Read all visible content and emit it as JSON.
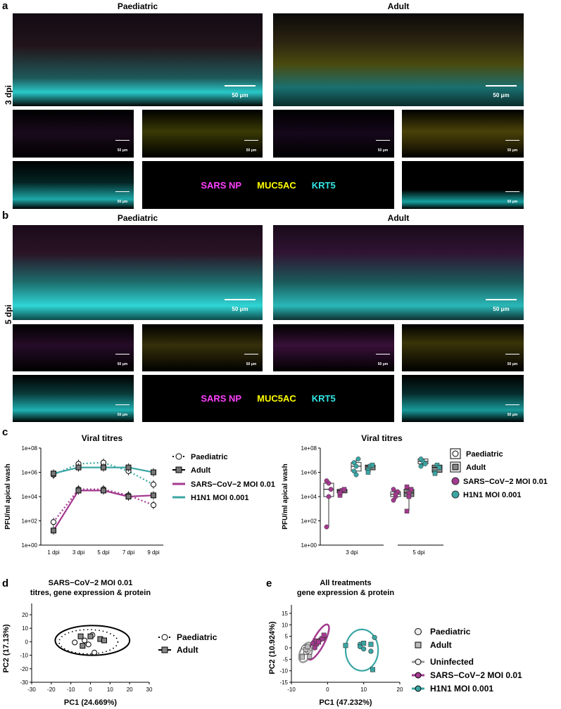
{
  "panel_a": {
    "label": "a",
    "col_left": "Paediatric",
    "col_right": "Adult",
    "row_label": "3 dpi",
    "scale_large": "50 μm",
    "scale_small": "50 μm"
  },
  "panel_b": {
    "label": "b",
    "col_left": "Paediatric",
    "col_right": "Adult",
    "row_label": "5 dpi",
    "scale_large": "50 μm",
    "scale_small": "50 μm"
  },
  "stain_legend": {
    "sars": {
      "label": "SARS NP",
      "color": "#ff40ff"
    },
    "muc": {
      "label": "MUC5AC",
      "color": "#ffff00"
    },
    "krt": {
      "label": "KRT5",
      "color": "#33e6e6"
    }
  },
  "panel_c": {
    "label": "c"
  },
  "panel_d": {
    "label": "d"
  },
  "panel_e": {
    "label": "e"
  },
  "colors": {
    "magenta": "#a43a8f",
    "teal": "#3aa6a3",
    "grey": "#9a9a9a"
  },
  "chart_data": [
    {
      "id": "c_left",
      "type": "line",
      "title": "Viral titres",
      "ylabel": "PFU/ml apical wash",
      "categories": [
        "1 dpi",
        "3 dpi",
        "5 dpi",
        "7 dpi",
        "9 dpi"
      ],
      "y_ticks": [
        "1e+00",
        "1e+02",
        "1e+04",
        "1e+06",
        "1e+08"
      ],
      "y_scale": "log10",
      "ylim": [
        0,
        8
      ],
      "series": [
        {
          "name": "SARS-CoV-2 MOI 0.01 Paediatric",
          "log10_values": [
            1.9,
            4.6,
            4.6,
            4.1,
            3.3
          ]
        },
        {
          "name": "SARS-CoV-2 MOI 0.01 Adult",
          "log10_values": [
            1.2,
            4.5,
            4.5,
            4.0,
            4.1
          ]
        },
        {
          "name": "H1N1 MOI 0.001 Paediatric",
          "log10_values": [
            5.8,
            6.7,
            6.8,
            6.1,
            5.0
          ]
        },
        {
          "name": "H1N1 MOI 0.001 Adult",
          "log10_values": [
            5.9,
            6.4,
            6.4,
            6.4,
            6.0
          ]
        }
      ],
      "legend": {
        "paediatric": "Paediatric",
        "adult": "Adult",
        "sars": "SARS−CoV−2 MOI 0.01",
        "h1n1": "H1N1 MOI 0.001"
      }
    },
    {
      "id": "c_right",
      "type": "scatter",
      "title": "Viral titres",
      "ylabel": "PFU/ml apical wash",
      "categories": [
        "3 dpi",
        "5 dpi"
      ],
      "y_ticks": [
        "1e+00",
        "1e+02",
        "1e+04",
        "1e+06",
        "1e+08"
      ],
      "y_scale": "log10",
      "groups": [
        {
          "category": "3 dpi",
          "virus": "SARS-CoV-2",
          "age": "Paediatric",
          "log10_values": [
            1.5,
            4.0,
            4.6,
            5.3,
            5.1
          ]
        },
        {
          "category": "3 dpi",
          "virus": "SARS-CoV-2",
          "age": "Adult",
          "log10_values": [
            4.1,
            4.5,
            4.6,
            4.3
          ]
        },
        {
          "category": "3 dpi",
          "virus": "H1N1",
          "age": "Paediatric",
          "log10_values": [
            6.1,
            6.5,
            7.1,
            6.8,
            5.8
          ]
        },
        {
          "category": "3 dpi",
          "virus": "H1N1",
          "age": "Adult",
          "log10_values": [
            6.2,
            6.5,
            6.6,
            6.0
          ]
        },
        {
          "category": "5 dpi",
          "virus": "SARS-CoV-2",
          "age": "Paediatric",
          "log10_values": [
            3.7,
            4.0,
            4.4,
            4.6,
            4.2
          ]
        },
        {
          "category": "5 dpi",
          "virus": "SARS-CoV-2",
          "age": "Adult",
          "log10_values": [
            2.8,
            4.3,
            4.6,
            4.8,
            4.0
          ]
        },
        {
          "category": "5 dpi",
          "virus": "H1N1",
          "age": "Paediatric",
          "log10_values": [
            6.5,
            6.9,
            6.7,
            7.1
          ]
        },
        {
          "category": "5 dpi",
          "virus": "H1N1",
          "age": "Adult",
          "log10_values": [
            6.0,
            6.6,
            6.4,
            5.9
          ]
        }
      ],
      "legend": {
        "paediatric": "Paediatric",
        "adult": "Adult",
        "sars": "SARS−CoV−2 MOI 0.01",
        "h1n1": "H1N1 MOI 0.001"
      }
    },
    {
      "id": "d",
      "type": "scatter",
      "title": "SARS−CoV−2 MOI 0.01",
      "subtitle": "titres, gene expression & protein",
      "xlabel": "PC1 (24.669%)",
      "ylabel": "PC2 (17.13%)",
      "xlim": [
        -30,
        30
      ],
      "ylim": [
        -30,
        20
      ],
      "x_ticks": [
        -30,
        -20,
        -10,
        0,
        10,
        20,
        30
      ],
      "y_ticks": [
        -30,
        -20,
        -10,
        0,
        10,
        20
      ],
      "series": [
        {
          "name": "Paediatric",
          "points": [
            [
              -8,
              -0.5
            ],
            [
              -3,
              1
            ],
            [
              1,
              5
            ],
            [
              -1,
              -2
            ],
            [
              2,
              -8
            ]
          ]
        },
        {
          "name": "Adult",
          "points": [
            [
              -5,
              4
            ],
            [
              -4,
              -3
            ],
            [
              0,
              4
            ],
            [
              5,
              2
            ],
            [
              7,
              1
            ]
          ]
        }
      ],
      "legend": {
        "paediatric": "Paediatric",
        "adult": "Adult"
      }
    },
    {
      "id": "e",
      "type": "scatter",
      "title": "All treatments",
      "subtitle": "gene expression & protein",
      "xlabel": "PC1 (47.232%)",
      "ylabel": "PC2 (10.924%)",
      "xlim": [
        -10,
        20
      ],
      "ylim": [
        -15,
        15
      ],
      "x_ticks": [
        -10,
        0,
        10,
        20
      ],
      "y_ticks": [
        -15,
        -10,
        -5,
        0,
        5,
        10,
        15
      ],
      "series": [
        {
          "name": "Uninfected Paediatric",
          "points": [
            [
              -7,
              -3.5
            ],
            [
              -6,
              -2
            ],
            [
              -5,
              -0.5
            ],
            [
              -6.5,
              0
            ],
            [
              -5.5,
              -1.5
            ]
          ]
        },
        {
          "name": "Uninfected Adult",
          "points": [
            [
              -7,
              -4
            ],
            [
              -6,
              -0.8
            ],
            [
              -5,
              -3.8
            ],
            [
              -5.5,
              0.5
            ]
          ]
        },
        {
          "name": "SARS-CoV-2 Paediatric",
          "points": [
            [
              -4,
              2
            ],
            [
              -3,
              1.5
            ],
            [
              -2,
              3.5
            ],
            [
              -1,
              4.5
            ],
            [
              -3.5,
              0
            ]
          ]
        },
        {
          "name": "SARS-CoV-2 Adult",
          "points": [
            [
              -3,
              3
            ],
            [
              -1.5,
              4
            ],
            [
              -1,
              5.5
            ],
            [
              -2.5,
              2.5
            ]
          ]
        },
        {
          "name": "H1N1 Paediatric",
          "points": [
            [
              9,
              1.5
            ],
            [
              9,
              0.5
            ],
            [
              10,
              -0.5
            ],
            [
              12,
              -1.5
            ],
            [
              13,
              4.5
            ]
          ]
        },
        {
          "name": "H1N1 Adult",
          "points": [
            [
              5,
              1
            ],
            [
              10,
              2
            ],
            [
              12,
              1.5
            ],
            [
              12.5,
              -9.5
            ]
          ]
        }
      ],
      "legend": {
        "paediatric": "Paediatric",
        "adult": "Adult",
        "uninf": "Uninfected",
        "sars": "SARS−CoV−2 MOI 0.01",
        "h1n1": "H1N1 MOI 0.001"
      }
    }
  ]
}
